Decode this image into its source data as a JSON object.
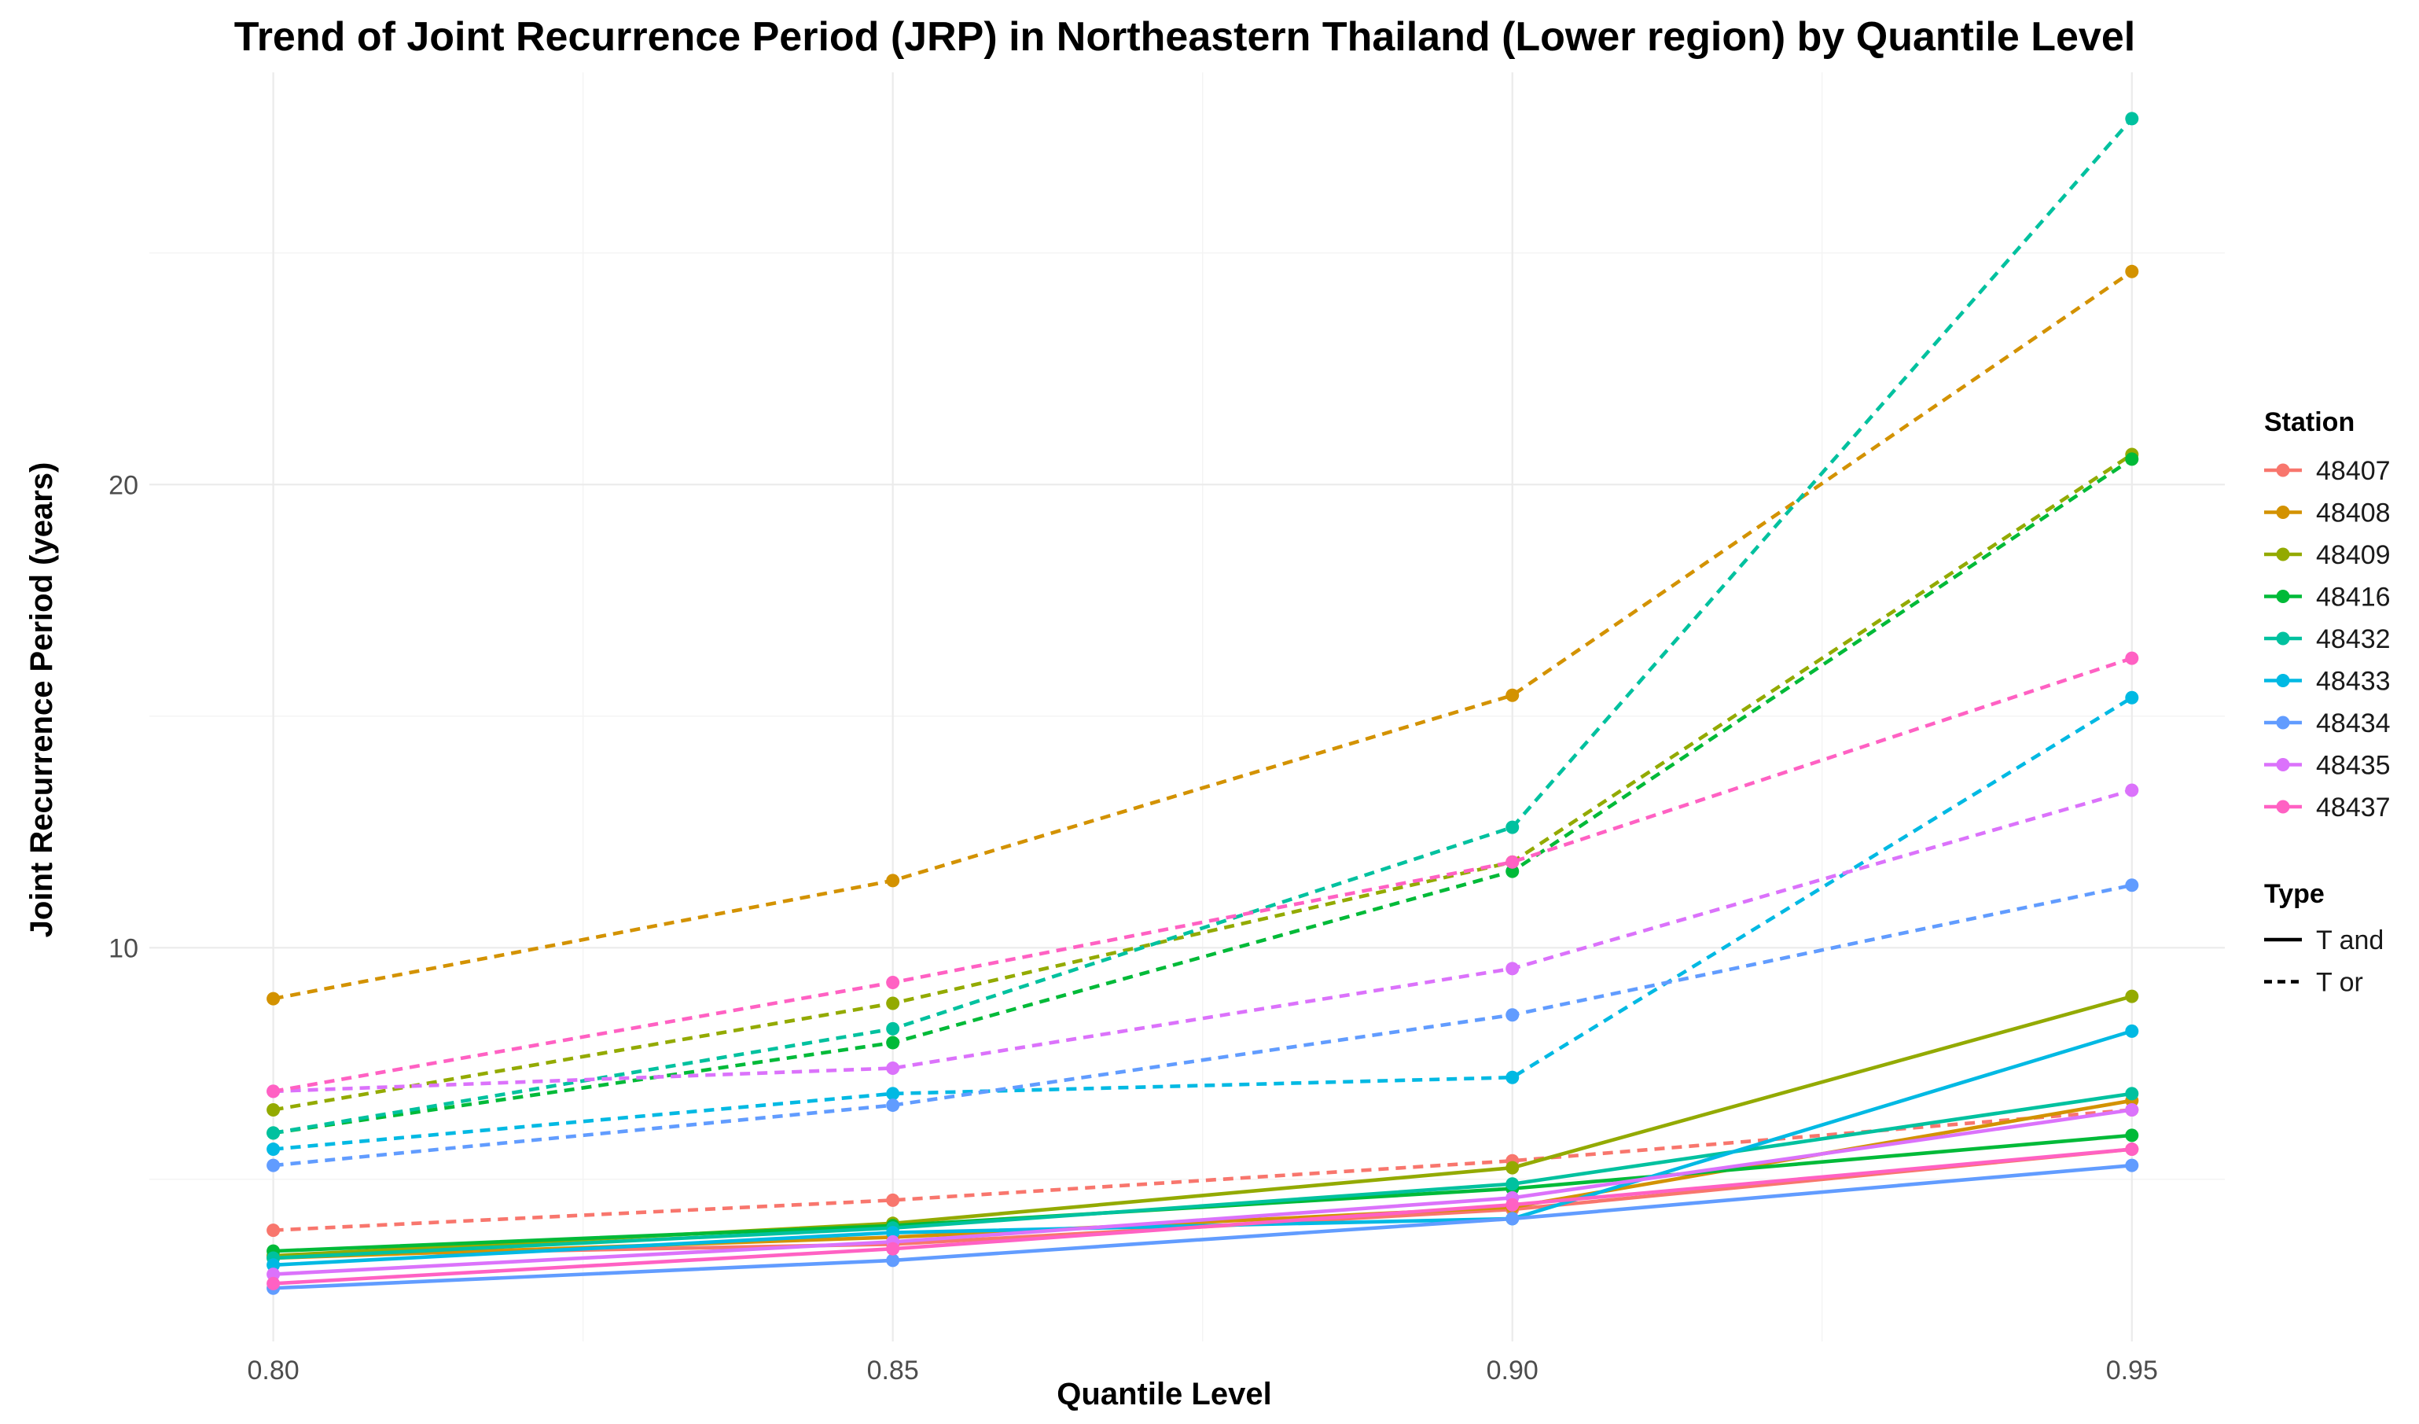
{
  "chart_data": {
    "type": "line",
    "title": "Trend of Joint Recurrence Period (JRP) in Northeastern Thailand (Lower region) by Quantile Level",
    "xlabel": "Quantile Level",
    "ylabel": "Joint Recurrence Period (years)",
    "x": [
      0.8,
      0.85,
      0.9,
      0.95
    ],
    "x_tick_labels": [
      "0.80",
      "0.85",
      "0.90",
      "0.95"
    ],
    "xlim": [
      0.79,
      0.9575
    ],
    "y_ticks": [
      10,
      20
    ],
    "y_tick_labels": [
      "10",
      "20"
    ],
    "ylim": [
      1.5,
      28.9
    ],
    "grid": true,
    "legend_station_title": "Station",
    "legend_type_title": "Type",
    "legend_position": "right",
    "types": [
      {
        "key": "T and",
        "label": "T and",
        "dash": "solid"
      },
      {
        "key": "T or",
        "label": "T or",
        "dash": "dashed"
      }
    ],
    "stations": [
      {
        "name": "48407",
        "color": "#F8766D"
      },
      {
        "name": "48408",
        "color": "#D39200"
      },
      {
        "name": "48409",
        "color": "#93AA00"
      },
      {
        "name": "48416",
        "color": "#00BA38"
      },
      {
        "name": "48432",
        "color": "#00C19F"
      },
      {
        "name": "48433",
        "color": "#00B9E3"
      },
      {
        "name": "48434",
        "color": "#619CFF"
      },
      {
        "name": "48435",
        "color": "#DB72FB"
      },
      {
        "name": "48437",
        "color": "#FF61C3"
      }
    ],
    "series": [
      {
        "station": "48407",
        "type": "T or",
        "values": [
          3.9,
          4.55,
          5.4,
          6.5
        ]
      },
      {
        "station": "48408",
        "type": "T or",
        "values": [
          8.9,
          11.45,
          15.45,
          24.6
        ]
      },
      {
        "station": "48409",
        "type": "T or",
        "values": [
          6.5,
          8.8,
          11.85,
          20.65
        ]
      },
      {
        "station": "48416",
        "type": "T or",
        "values": [
          6.0,
          7.95,
          11.65,
          20.55
        ]
      },
      {
        "station": "48432",
        "type": "T or",
        "values": [
          6.0,
          8.25,
          12.6,
          27.9
        ]
      },
      {
        "station": "48433",
        "type": "T or",
        "values": [
          5.65,
          6.85,
          7.2,
          15.4
        ]
      },
      {
        "station": "48434",
        "type": "T or",
        "values": [
          5.3,
          6.6,
          8.55,
          11.35
        ]
      },
      {
        "station": "48435",
        "type": "T or",
        "values": [
          6.9,
          7.4,
          9.55,
          13.4
        ]
      },
      {
        "station": "48437",
        "type": "T or",
        "values": [
          6.9,
          9.25,
          11.85,
          16.25
        ]
      },
      {
        "station": "48407",
        "type": "T and",
        "values": [
          3.35,
          3.6,
          4.35,
          5.65
        ]
      },
      {
        "station": "48408",
        "type": "T and",
        "values": [
          3.3,
          3.75,
          4.4,
          6.7
        ]
      },
      {
        "station": "48409",
        "type": "T and",
        "values": [
          3.35,
          4.05,
          5.25,
          8.95
        ]
      },
      {
        "station": "48416",
        "type": "T and",
        "values": [
          3.45,
          4.0,
          4.8,
          5.95
        ]
      },
      {
        "station": "48432",
        "type": "T and",
        "values": [
          3.3,
          3.95,
          4.9,
          6.85
        ]
      },
      {
        "station": "48433",
        "type": "T and",
        "values": [
          3.15,
          3.85,
          4.15,
          8.2
        ]
      },
      {
        "station": "48434",
        "type": "T and",
        "values": [
          2.65,
          3.25,
          4.15,
          5.3
        ]
      },
      {
        "station": "48435",
        "type": "T and",
        "values": [
          2.95,
          3.65,
          4.6,
          6.5
        ]
      },
      {
        "station": "48437",
        "type": "T and",
        "values": [
          2.75,
          3.5,
          4.45,
          5.65
        ]
      }
    ]
  }
}
